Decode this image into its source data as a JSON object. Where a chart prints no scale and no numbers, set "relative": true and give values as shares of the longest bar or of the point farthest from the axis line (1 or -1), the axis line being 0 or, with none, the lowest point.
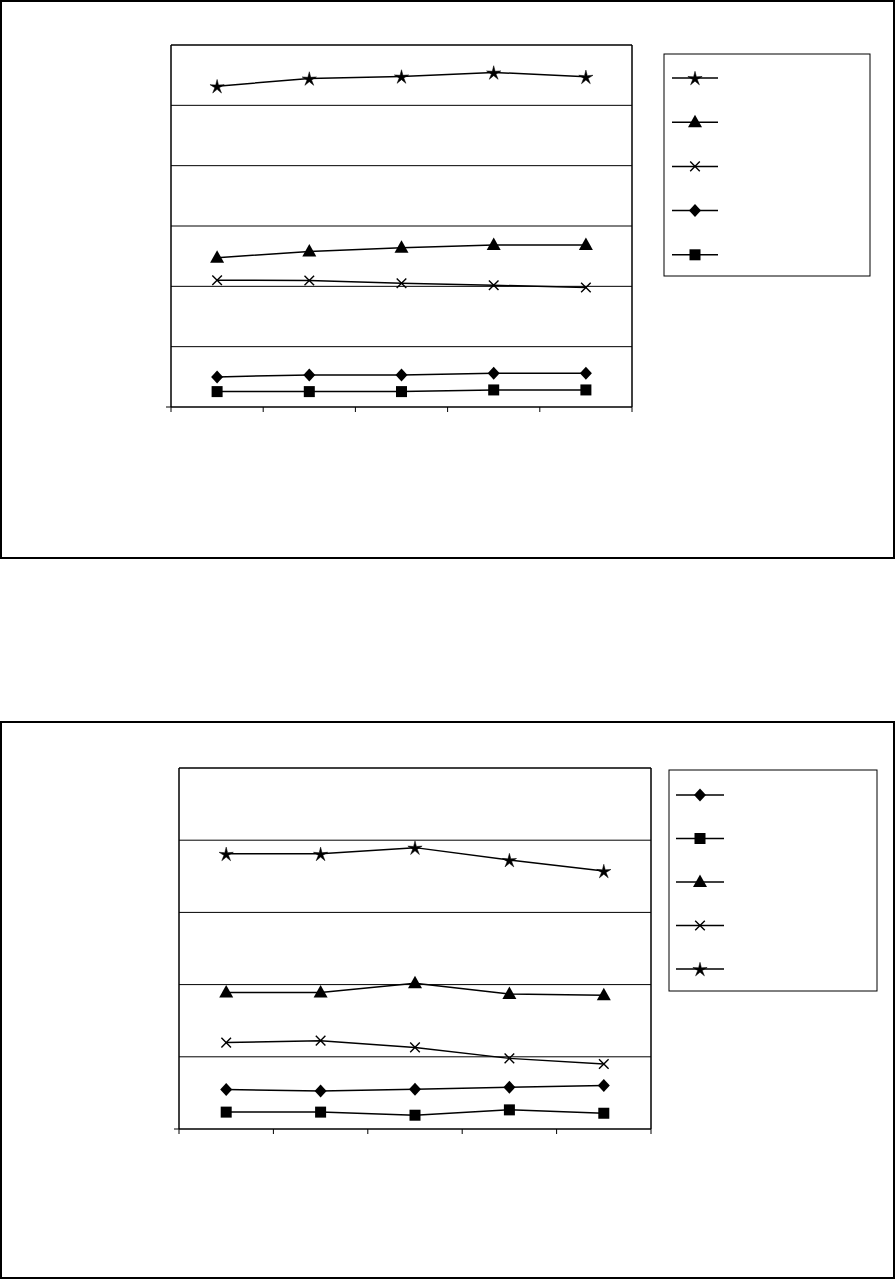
{
  "chart_data": [
    {
      "type": "line",
      "relative": true,
      "categories": [
        null,
        null,
        null,
        null,
        null
      ],
      "grid": "y",
      "series": [
        {
          "color": "#000000",
          "marker": "star",
          "values": [
            0.959,
            0.982,
            0.988,
            1,
            0.987
          ]
        },
        {
          "color": "#000000",
          "marker": "triangle",
          "values": [
            0.446,
            0.465,
            0.476,
            0.484,
            0.484
          ]
        },
        {
          "color": "#000000",
          "marker": "cross",
          "values": [
            0.379,
            0.378,
            0.37,
            0.364,
            0.357
          ]
        },
        {
          "color": "#000000",
          "marker": "diamond",
          "values": [
            0.09,
            0.096,
            0.096,
            0.101,
            0.101
          ]
        },
        {
          "color": "#000000",
          "marker": "square",
          "values": [
            0.046,
            0.046,
            0.046,
            0.051,
            0.051
          ]
        }
      ]
    },
    {
      "type": "line",
      "relative": true,
      "categories": [
        null,
        null,
        null,
        null,
        null
      ],
      "grid": "y",
      "series": [
        {
          "color": "#000000",
          "marker": "diamond",
          "values": [
            0.14,
            0.135,
            0.141,
            0.148,
            0.155
          ]
        },
        {
          "color": "#000000",
          "marker": "square",
          "values": [
            0.06,
            0.06,
            0.049,
            0.068,
            0.056
          ]
        },
        {
          "color": "#000000",
          "marker": "triangle",
          "values": [
            0.485,
            0.485,
            0.518,
            0.48,
            0.475
          ]
        },
        {
          "color": "#000000",
          "marker": "cross",
          "values": [
            0.307,
            0.314,
            0.29,
            0.251,
            0.231
          ]
        },
        {
          "color": "#000000",
          "marker": "star",
          "values": [
            0.978,
            0.978,
            1,
            0.956,
            0.917
          ]
        }
      ]
    }
  ]
}
